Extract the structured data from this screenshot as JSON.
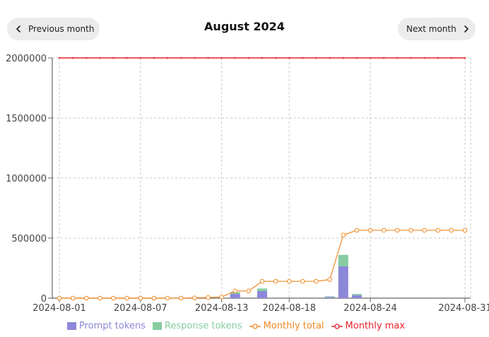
{
  "header": {
    "title": "August 2024",
    "prev_label": "Previous month",
    "next_label": "Next month"
  },
  "colors": {
    "prompt": "#8c87d9",
    "response": "#86cca0",
    "total": "#f08a24",
    "max": "#e8202a",
    "grid": "#c8c8c8",
    "axis": "#666666"
  },
  "chart_data": {
    "type": "bar",
    "x_tick_labels": [
      "2024-08-01",
      "2024-08-07",
      "2024-08-13",
      "2024-08-18",
      "2024-08-24",
      "2024-08-31"
    ],
    "y_ticks": [
      0,
      500000,
      1000000,
      1500000,
      2000000
    ],
    "ylim": [
      0,
      2000000
    ],
    "grid": true,
    "legend_position": "bottom",
    "categories": [
      "2024-08-01",
      "2024-08-02",
      "2024-08-03",
      "2024-08-04",
      "2024-08-05",
      "2024-08-06",
      "2024-08-07",
      "2024-08-08",
      "2024-08-09",
      "2024-08-10",
      "2024-08-11",
      "2024-08-12",
      "2024-08-13",
      "2024-08-14",
      "2024-08-15",
      "2024-08-16",
      "2024-08-17",
      "2024-08-18",
      "2024-08-19",
      "2024-08-20",
      "2024-08-21",
      "2024-08-22",
      "2024-08-23",
      "2024-08-24",
      "2024-08-25",
      "2024-08-26",
      "2024-08-27",
      "2024-08-28",
      "2024-08-29",
      "2024-08-30",
      "2024-08-31"
    ],
    "series": [
      {
        "name": "Prompt tokens",
        "kind": "bar",
        "values": [
          0,
          0,
          0,
          0,
          0,
          0,
          0,
          0,
          0,
          0,
          0,
          0,
          0,
          35000,
          0,
          60000,
          0,
          0,
          0,
          0,
          10000,
          265000,
          25000,
          0,
          0,
          0,
          0,
          0,
          0,
          0,
          0
        ]
      },
      {
        "name": "Response tokens",
        "kind": "bar",
        "values": [
          0,
          0,
          0,
          0,
          0,
          0,
          0,
          0,
          0,
          0,
          0,
          0,
          0,
          15000,
          0,
          20000,
          0,
          0,
          0,
          0,
          5000,
          95000,
          10000,
          0,
          0,
          0,
          0,
          0,
          0,
          0,
          0
        ]
      },
      {
        "name": "Monthly total",
        "kind": "line",
        "values": [
          0,
          0,
          0,
          0,
          0,
          0,
          0,
          0,
          0,
          0,
          2000,
          5000,
          10000,
          60000,
          60000,
          140000,
          140000,
          140000,
          140000,
          140000,
          155000,
          525000,
          565000,
          565000,
          565000,
          565000,
          565000,
          565000,
          565000,
          565000,
          565000
        ]
      },
      {
        "name": "Monthly max",
        "kind": "line",
        "values": [
          2000000,
          2000000,
          2000000,
          2000000,
          2000000,
          2000000,
          2000000,
          2000000,
          2000000,
          2000000,
          2000000,
          2000000,
          2000000,
          2000000,
          2000000,
          2000000,
          2000000,
          2000000,
          2000000,
          2000000,
          2000000,
          2000000,
          2000000,
          2000000,
          2000000,
          2000000,
          2000000,
          2000000,
          2000000,
          2000000,
          2000000
        ]
      }
    ]
  }
}
